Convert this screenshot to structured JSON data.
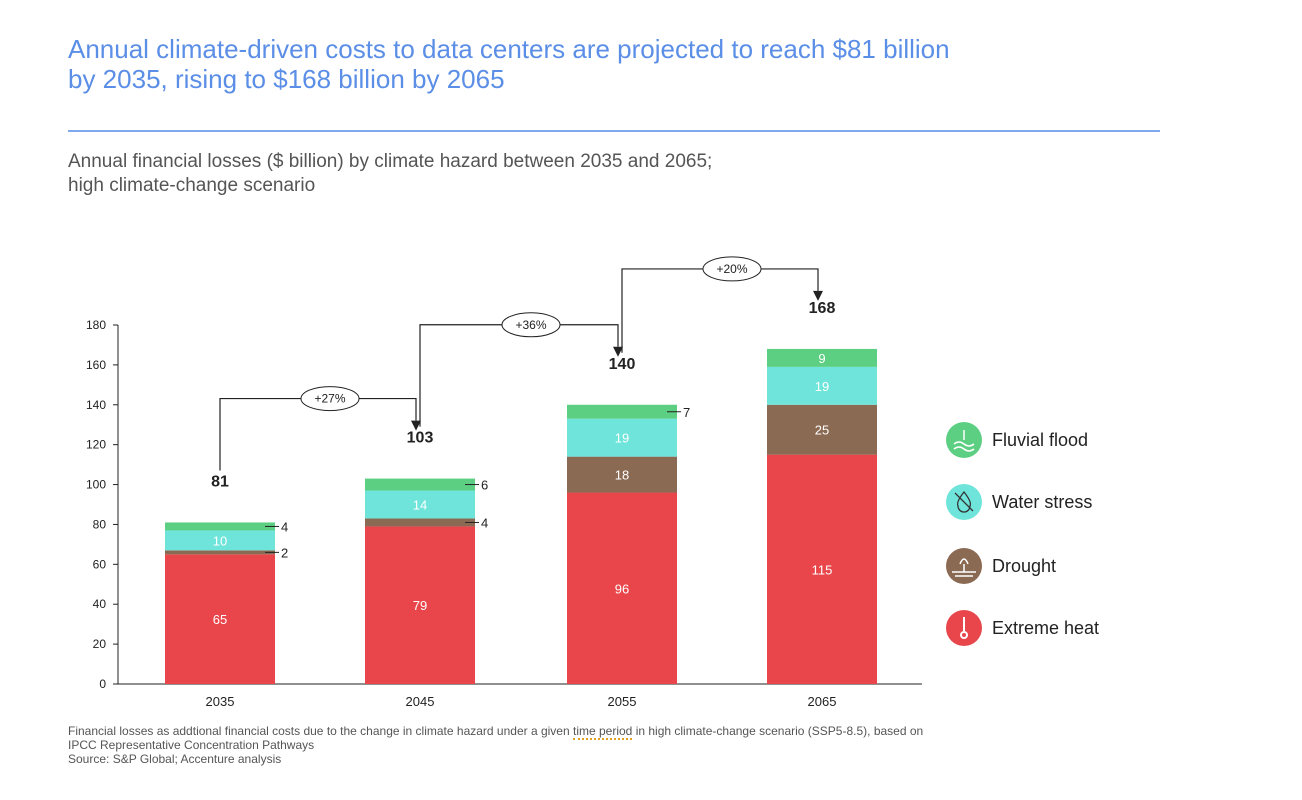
{
  "header": {
    "title_line1": "Annual climate-driven costs to data centers are projected to reach $81 billion",
    "title_line2": "by 2035, rising to $168 billion by 2065",
    "subtitle_line1": "Annual financial losses ($ billion) by climate hazard between 2035 and 2065;",
    "subtitle_line2": "high climate-change scenario"
  },
  "chart_data": {
    "type": "bar",
    "stacked": true,
    "title": "",
    "xlabel": "",
    "ylabel": "",
    "ylim": [
      0,
      180
    ],
    "yticks": [
      0,
      20,
      40,
      60,
      80,
      100,
      120,
      140,
      160,
      180
    ],
    "grid": false,
    "legend_position": "right",
    "categories": [
      "2035",
      "2045",
      "2055",
      "2065"
    ],
    "totals": [
      81,
      103,
      140,
      168
    ],
    "series": [
      {
        "name": "Extreme heat",
        "values": [
          65,
          79,
          96,
          115
        ],
        "color": "#e9464b",
        "icon": "thermometer-icon"
      },
      {
        "name": "Drought",
        "values": [
          2,
          4,
          18,
          25
        ],
        "color": "#8b6a53",
        "icon": "dry-ground-icon"
      },
      {
        "name": "Water stress",
        "values": [
          10,
          14,
          19,
          19
        ],
        "color": "#6fe4da",
        "icon": "crossed-droplet-icon"
      },
      {
        "name": "Fluvial flood",
        "values": [
          4,
          6,
          7,
          9
        ],
        "color": "#5dcf83",
        "icon": "flood-water-icon"
      }
    ],
    "growth_annotations": [
      {
        "from": "2035",
        "to": "2045",
        "label": "+27%"
      },
      {
        "from": "2045",
        "to": "2055",
        "label": "+36%"
      },
      {
        "from": "2055",
        "to": "2065",
        "label": "+20%"
      }
    ]
  },
  "footer": {
    "note_part1": "Financial losses as addtional financial costs due to the change in climate hazard under a given ",
    "note_underlined": "time period",
    "note_part2": " in high climate-change scenario (SSP5-8.5), based on IPCC Representative Concentration Pathways",
    "source": "Source: S&P Global; Accenture analysis"
  }
}
